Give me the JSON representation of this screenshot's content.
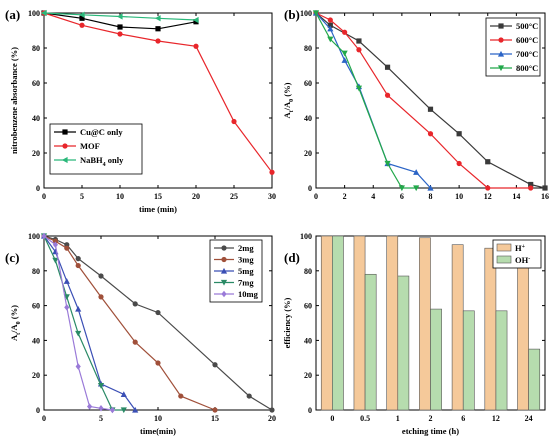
{
  "chart_data": [
    {
      "panel_label": "(a)",
      "type": "line",
      "xlabel": "time (min)",
      "ylabel": "nitrobenzene absorbance (%)",
      "xlim": [
        0,
        30
      ],
      "ylim": [
        0,
        100
      ],
      "xticks": [
        0,
        5,
        10,
        15,
        20,
        25,
        30
      ],
      "yticks": [
        0,
        20,
        40,
        60,
        80,
        100
      ],
      "legend_position": "lower-left",
      "series": [
        {
          "name": "Cu@C only",
          "color": "#000000",
          "marker": "square",
          "x": [
            0,
            5,
            10,
            15,
            20
          ],
          "values": [
            100,
            97,
            92,
            91,
            95
          ]
        },
        {
          "name": "MOF",
          "color": "#e8262b",
          "marker": "circle",
          "x": [
            0,
            5,
            10,
            15,
            20,
            25,
            30
          ],
          "values": [
            100,
            93,
            88,
            84,
            81,
            38,
            9
          ]
        },
        {
          "name": "NaBH4 only",
          "color": "#2ab87a",
          "marker": "triangle-left",
          "x": [
            0,
            5,
            10,
            15,
            20
          ],
          "values": [
            100,
            99,
            98,
            97,
            96
          ]
        }
      ]
    },
    {
      "panel_label": "(b)",
      "type": "line",
      "xlabel": "",
      "ylabel": "At/A0 (%)",
      "xlim": [
        0,
        16
      ],
      "ylim": [
        0,
        100
      ],
      "xticks": [
        0,
        2,
        4,
        6,
        8,
        10,
        12,
        14,
        16
      ],
      "yticks": [
        0,
        20,
        40,
        60,
        80,
        100
      ],
      "legend_position": "top-right",
      "series": [
        {
          "name": "500°C",
          "color": "#3a3a3a",
          "marker": "square",
          "x": [
            0,
            1,
            3,
            5,
            8,
            10,
            12,
            15,
            16
          ],
          "values": [
            100,
            93,
            84,
            69,
            45,
            31,
            15,
            2,
            0
          ]
        },
        {
          "name": "600°C",
          "color": "#e8262b",
          "marker": "circle",
          "x": [
            0,
            1,
            2,
            3,
            5,
            8,
            10,
            12,
            15
          ],
          "values": [
            100,
            96,
            89,
            79,
            53,
            31,
            14,
            0,
            0
          ]
        },
        {
          "name": "700°C",
          "color": "#2b64c6",
          "marker": "triangle-up",
          "x": [
            0,
            1,
            2,
            3,
            5,
            7,
            8
          ],
          "values": [
            100,
            91,
            73,
            58,
            14,
            9,
            0
          ]
        },
        {
          "name": "800°C",
          "color": "#22a84a",
          "marker": "triangle-down",
          "x": [
            0,
            1,
            2,
            3,
            5,
            6,
            7
          ],
          "values": [
            100,
            85,
            77,
            57,
            14,
            0,
            0
          ]
        }
      ]
    },
    {
      "panel_label": "(c)",
      "type": "line",
      "xlabel": "time(min)",
      "ylabel": "At/A0 (%)",
      "xlim": [
        0,
        20
      ],
      "ylim": [
        0,
        100
      ],
      "xticks": [
        0,
        5,
        10,
        15,
        20
      ],
      "yticks": [
        0,
        20,
        40,
        60,
        80,
        100
      ],
      "legend_position": "top-right",
      "series": [
        {
          "name": "2mg",
          "color": "#4a4a4a",
          "marker": "circle",
          "x": [
            0,
            1,
            2,
            3,
            5,
            8,
            10,
            15,
            18,
            20
          ],
          "values": [
            100,
            98,
            95,
            87,
            77,
            61,
            56,
            26,
            8,
            0
          ]
        },
        {
          "name": "3mg",
          "color": "#a0503a",
          "marker": "circle",
          "x": [
            0,
            1,
            2,
            3,
            5,
            8,
            10,
            12,
            15
          ],
          "values": [
            100,
            97,
            93,
            83,
            65,
            39,
            27,
            8,
            0
          ]
        },
        {
          "name": "5mg",
          "color": "#3b4fb5",
          "marker": "triangle-up",
          "x": [
            0,
            1,
            2,
            3,
            5,
            7,
            8
          ],
          "values": [
            100,
            91,
            74,
            58,
            15,
            9,
            0
          ]
        },
        {
          "name": "7mg",
          "color": "#2a8a66",
          "marker": "triangle-down",
          "x": [
            0,
            1,
            2,
            3,
            5,
            6,
            7
          ],
          "values": [
            100,
            86,
            65,
            44,
            14,
            0,
            0
          ]
        },
        {
          "name": "10mg",
          "color": "#9a7ad8",
          "marker": "diamond",
          "x": [
            0,
            1,
            2,
            3,
            4,
            5,
            6
          ],
          "values": [
            100,
            95,
            59,
            25,
            2,
            1,
            0
          ]
        }
      ]
    },
    {
      "panel_label": "(d)",
      "type": "bar",
      "xlabel": "etching time (h)",
      "ylabel": "efficiency (%)",
      "ylim": [
        0,
        100
      ],
      "yticks": [
        0,
        20,
        40,
        60,
        80,
        100
      ],
      "legend_position": "top-right",
      "categories": [
        "0",
        "0.5",
        "1",
        "2",
        "6",
        "12",
        "24"
      ],
      "series": [
        {
          "name": "H+",
          "color": "#f5c99a",
          "values": [
            100,
            100,
            100,
            99,
            95,
            93,
            91
          ]
        },
        {
          "name": "OH-",
          "color": "#b6dcae",
          "values": [
            100,
            78,
            77,
            58,
            57,
            57,
            35
          ]
        }
      ]
    }
  ]
}
